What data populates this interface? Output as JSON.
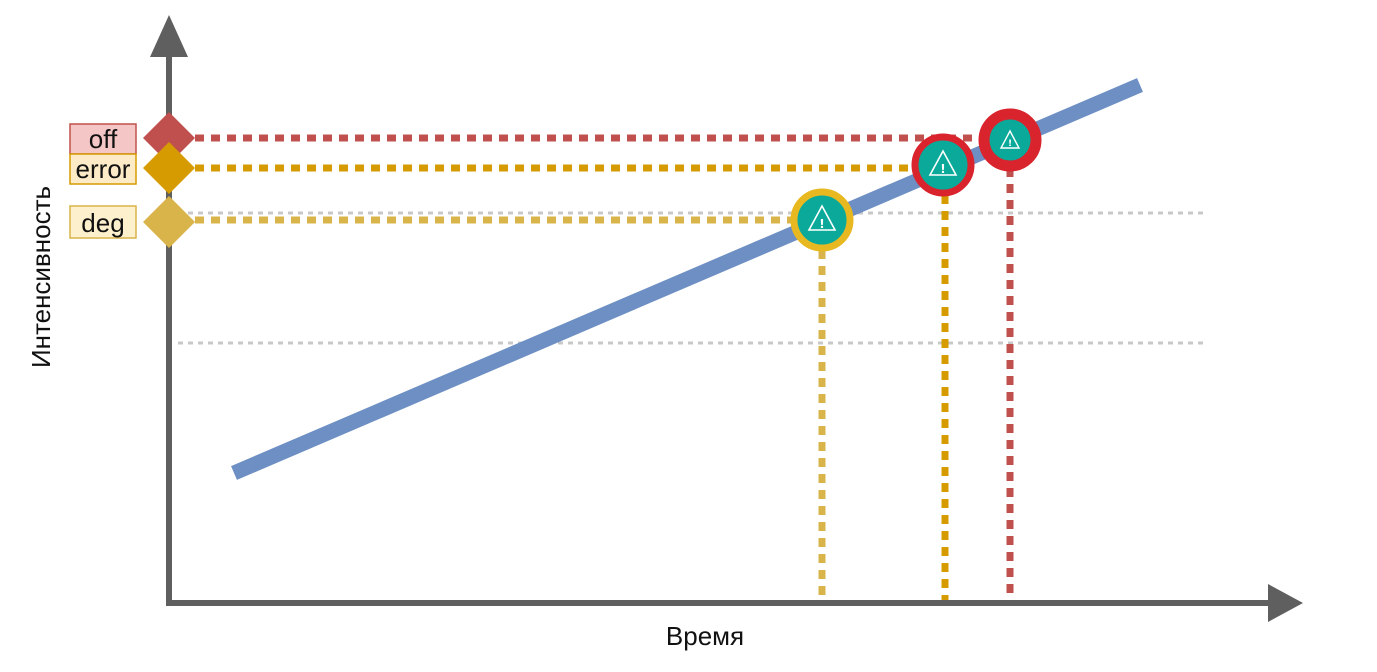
{
  "diagram": {
    "axes": {
      "x_label": "Время",
      "y_label": "Интенсивность"
    },
    "threshold_levels": [
      {
        "id": "off",
        "label": "off",
        "color": "#c0504d",
        "box_fill": "#f5c6c6",
        "box_stroke": "#c0504d"
      },
      {
        "id": "error",
        "label": "error",
        "color": "#d59b00",
        "box_fill": "#fdebc8",
        "box_stroke": "#d59b00"
      },
      {
        "id": "deg",
        "label": "deg",
        "color": "#d9b44a",
        "box_fill": "#fdf0cc",
        "box_stroke": "#d9b44a"
      }
    ],
    "trend_line": {
      "color": "#6d8fc3"
    },
    "alert_markers": [
      {
        "level": "deg",
        "ring_color": "#e8b820",
        "fill_color": "#0aa99a",
        "icon": "warning-triangle-icon",
        "glyph": "!"
      },
      {
        "level": "error",
        "ring_color": "#d9232d",
        "fill_color": "#0aa99a",
        "icon": "warning-triangle-icon",
        "glyph": "!"
      },
      {
        "level": "off",
        "ring_color": "#d9232d",
        "fill_color": "#0aa99a",
        "icon": "warning-triangle-icon",
        "glyph": "!"
      }
    ],
    "colors": {
      "axis": "#5f5f5f",
      "reference_line": "#c8c8c8"
    }
  }
}
